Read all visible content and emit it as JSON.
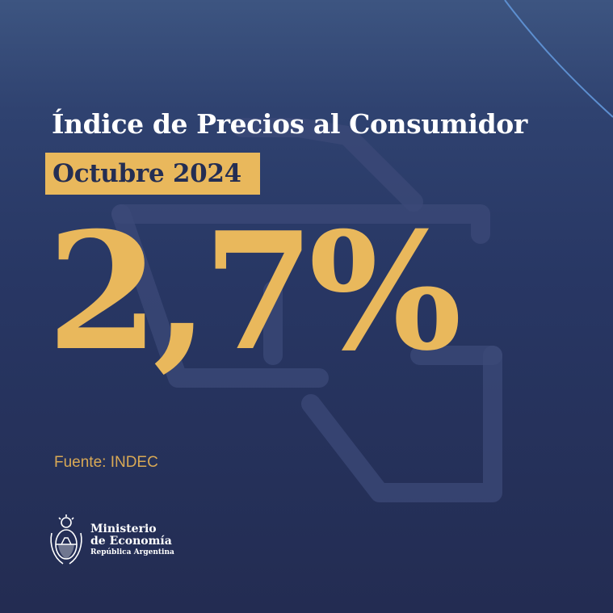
{
  "header": {
    "title": "Índice de Precios al Consumidor",
    "period": "Octubre 2024"
  },
  "indicator": {
    "value": "2,7%"
  },
  "source": "Fuente: INDEC",
  "footer": {
    "ministry_line1": "Ministerio",
    "ministry_line2": "de Economía",
    "country": "República Argentina"
  },
  "colors": {
    "background": "#283764",
    "accent": "#e9b85c",
    "text": "#ffffff"
  },
  "icons": {
    "background_graphic": "shopping-cart-icon",
    "emblem": "coat-of-arms-icon"
  }
}
